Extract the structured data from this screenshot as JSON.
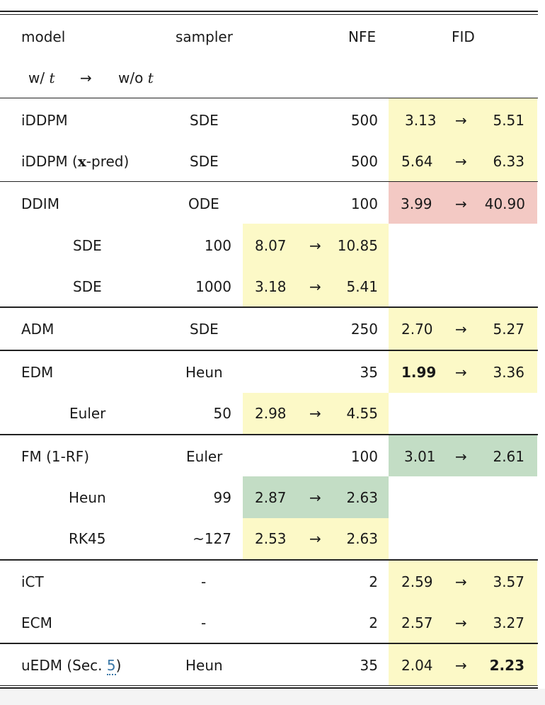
{
  "header": {
    "model": "model",
    "sampler": "sampler",
    "nfe": "NFE",
    "fid": "FID",
    "with_t": "w/",
    "without_t": "w/o",
    "t_symbol": "t",
    "arrow": "→"
  },
  "rows": [
    {
      "model": "iDDPM",
      "sampler": "SDE",
      "nfe": "500",
      "from": "3.13",
      "to": "5.51",
      "arrow": "→"
    },
    {
      "model_prefix": "iDDPM (",
      "model_bold": "x",
      "model_suffix": "-pred)",
      "sampler": "SDE",
      "nfe": "500",
      "from": "5.64",
      "to": "6.33",
      "arrow": "→"
    },
    {
      "model": "DDIM",
      "sampler": "ODE",
      "nfe": "100",
      "from": "3.99",
      "to": "40.90",
      "arrow": "→"
    },
    {
      "sampler": "SDE",
      "nfe": "100",
      "from": "8.07",
      "to": "10.85",
      "arrow": "→"
    },
    {
      "sampler": "SDE",
      "nfe": "1000",
      "from": "3.18",
      "to": "5.41",
      "arrow": "→"
    },
    {
      "model": "ADM",
      "sampler": "SDE",
      "nfe": "250",
      "from": "2.70",
      "to": "5.27",
      "arrow": "→"
    },
    {
      "model": "EDM",
      "sampler": "Heun",
      "nfe": "35",
      "from": "1.99",
      "to": "3.36",
      "arrow": "→"
    },
    {
      "sampler": "Euler",
      "nfe": "50",
      "from": "2.98",
      "to": "4.55",
      "arrow": "→"
    },
    {
      "model": "FM (1-RF)",
      "sampler": "Euler",
      "nfe": "100",
      "from": "3.01",
      "to": "2.61",
      "arrow": "→"
    },
    {
      "sampler": "Heun",
      "nfe": "99",
      "from": "2.87",
      "to": "2.63",
      "arrow": "→"
    },
    {
      "sampler": "RK45",
      "nfe": "~127",
      "from": "2.53",
      "to": "2.63",
      "arrow": "→"
    },
    {
      "model": "iCT",
      "sampler": "-",
      "nfe": "2",
      "from": "2.59",
      "to": "3.57",
      "arrow": "→"
    },
    {
      "model": "ECM",
      "sampler": "-",
      "nfe": "2",
      "from": "2.57",
      "to": "3.27",
      "arrow": "→"
    },
    {
      "model_prefix": "uEDM (Sec. ",
      "model_link": "5",
      "model_suffix": ")",
      "sampler": "Heun",
      "nfe": "35",
      "from": "2.04",
      "to": "2.23",
      "arrow": "→"
    }
  ],
  "colors": {
    "yellow": "#fcf9c7",
    "red": "#f3c9c4",
    "green": "#c3ddc5",
    "link": "#3b78a8"
  }
}
